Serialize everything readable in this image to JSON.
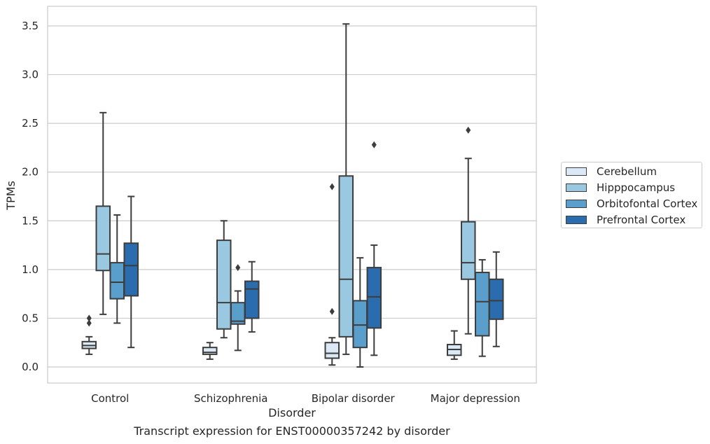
{
  "caption": "Transcript expression for ENST00000357242 by disorder",
  "chart_data": {
    "type": "box",
    "xlabel": "Disorder",
    "ylabel": "TPMs",
    "ylim": [
      -0.17,
      3.7
    ],
    "yticks": [
      "0.0",
      "0.5",
      "1.0",
      "1.5",
      "2.0",
      "2.5",
      "3.0",
      "3.5"
    ],
    "ytick_values": [
      0,
      0.5,
      1.0,
      1.5,
      2.0,
      2.5,
      3.0,
      3.5
    ],
    "grid": true,
    "legend_position": "right",
    "categories": [
      "Control",
      "Schizophrenia",
      "Bipolar disorder",
      "Major depression"
    ],
    "series": [
      {
        "name": "Cerebellum",
        "color": "#dbe9f6",
        "boxes": [
          {
            "whislo": 0.13,
            "q1": 0.19,
            "med": 0.22,
            "q3": 0.26,
            "whishi": 0.31,
            "fliers": [
              0.45,
              0.5
            ]
          },
          {
            "whislo": 0.08,
            "q1": 0.13,
            "med": 0.15,
            "q3": 0.2,
            "whishi": 0.25,
            "fliers": []
          },
          {
            "whislo": 0.02,
            "q1": 0.09,
            "med": 0.14,
            "q3": 0.25,
            "whishi": 0.3,
            "fliers": [
              0.57,
              1.85
            ]
          },
          {
            "whislo": 0.08,
            "q1": 0.12,
            "med": 0.18,
            "q3": 0.23,
            "whishi": 0.37,
            "fliers": []
          }
        ]
      },
      {
        "name": "Hipppocampus",
        "color": "#9ac8e0",
        "boxes": [
          {
            "whislo": 0.54,
            "q1": 0.99,
            "med": 1.16,
            "q3": 1.65,
            "whishi": 2.61,
            "fliers": []
          },
          {
            "whislo": 0.3,
            "q1": 0.39,
            "med": 0.66,
            "q3": 1.3,
            "whishi": 1.5,
            "fliers": []
          },
          {
            "whislo": 0.13,
            "q1": 0.31,
            "med": 0.9,
            "q3": 1.96,
            "whishi": 3.52,
            "fliers": []
          },
          {
            "whislo": 0.34,
            "q1": 0.9,
            "med": 1.07,
            "q3": 1.49,
            "whishi": 2.14,
            "fliers": [
              2.43
            ]
          }
        ]
      },
      {
        "name": "Orbitofontal Cortex",
        "color": "#5a9ecc",
        "boxes": [
          {
            "whislo": 0.45,
            "q1": 0.7,
            "med": 0.87,
            "q3": 1.07,
            "whishi": 1.56,
            "fliers": []
          },
          {
            "whislo": 0.17,
            "q1": 0.44,
            "med": 0.47,
            "q3": 0.66,
            "whishi": 0.78,
            "fliers": [
              1.02
            ]
          },
          {
            "whislo": 0.0,
            "q1": 0.2,
            "med": 0.43,
            "q3": 0.68,
            "whishi": 1.12,
            "fliers": []
          },
          {
            "whislo": 0.11,
            "q1": 0.32,
            "med": 0.67,
            "q3": 0.97,
            "whishi": 1.1,
            "fliers": []
          }
        ]
      },
      {
        "name": "Prefrontal Cortex",
        "color": "#2a6cad",
        "boxes": [
          {
            "whislo": 0.2,
            "q1": 0.73,
            "med": 1.04,
            "q3": 1.27,
            "whishi": 1.75,
            "fliers": []
          },
          {
            "whislo": 0.36,
            "q1": 0.5,
            "med": 0.8,
            "q3": 0.88,
            "whishi": 1.08,
            "fliers": []
          },
          {
            "whislo": 0.12,
            "q1": 0.4,
            "med": 0.72,
            "q3": 1.02,
            "whishi": 1.25,
            "fliers": [
              2.28
            ]
          },
          {
            "whislo": 0.21,
            "q1": 0.49,
            "med": 0.68,
            "q3": 0.9,
            "whishi": 1.18,
            "fliers": []
          }
        ]
      }
    ]
  }
}
